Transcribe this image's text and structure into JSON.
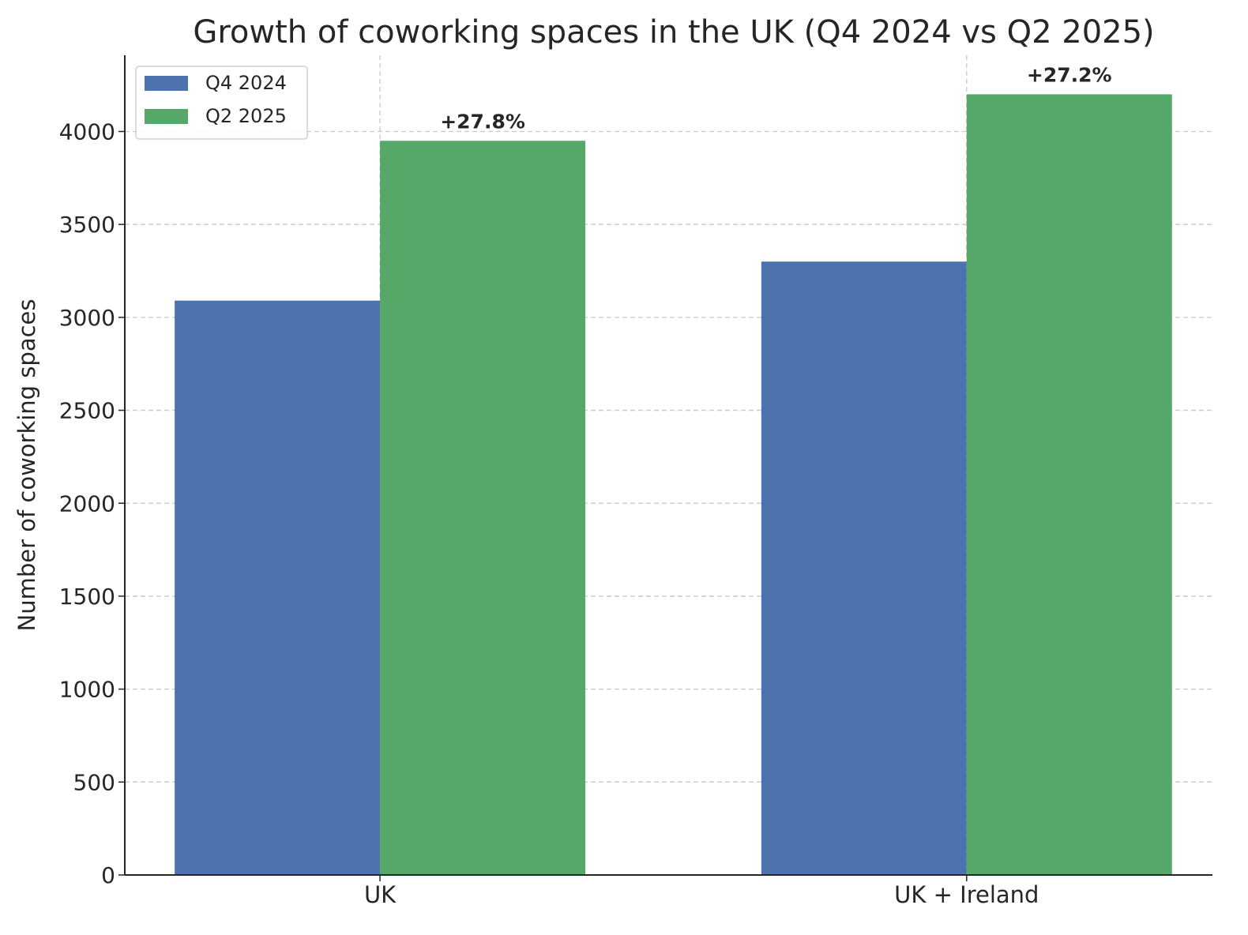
{
  "chart_data": {
    "type": "bar",
    "title": "Growth of coworking spaces in the UK (Q4 2024 vs Q2 2025)",
    "xlabel": "",
    "ylabel": "Number of coworking spaces",
    "categories": [
      "UK",
      "UK + Ireland"
    ],
    "series": [
      {
        "name": "Q4 2024",
        "values": [
          3090,
          3300
        ],
        "color": "#4c72b0"
      },
      {
        "name": "Q2 2025",
        "values": [
          3950,
          4200
        ],
        "color": "#55a868"
      }
    ],
    "annotations": [
      "+27.8%",
      "+27.2%"
    ],
    "ylim": [
      0,
      4410
    ],
    "yticks": [
      0,
      500,
      1000,
      1500,
      2000,
      2500,
      3000,
      3500,
      4000
    ],
    "grid": true,
    "legend_position": "top-left"
  }
}
